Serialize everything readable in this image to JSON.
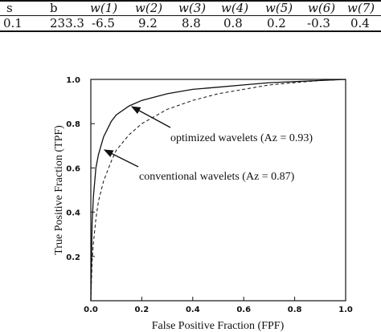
{
  "table": {
    "headers": [
      "s",
      "b",
      "w(1)",
      "w(2)",
      "w(3)",
      "w(4)",
      "w(5)",
      "w(6)",
      "w(7)"
    ],
    "values": [
      "0.1",
      "233.3",
      "-6.5",
      "9.2",
      "8.8",
      "0.8",
      "0.2",
      "-0.3",
      "0.4"
    ]
  },
  "chart_data": {
    "type": "line",
    "xlabel": "False Positive Fraction (FPF)",
    "ylabel": "True Positive Fraction (TPF)",
    "xlim": [
      0.0,
      1.0
    ],
    "ylim": [
      0.0,
      1.0
    ],
    "xticks": [
      "0.0",
      "0.2",
      "0.4",
      "0.6",
      "0.8",
      "1.0"
    ],
    "yticks": [
      "0.2",
      "0.4",
      "0.6",
      "0.8",
      "1.0"
    ],
    "grid": false,
    "series": [
      {
        "name": "optimized wavelets (Az = 0.93)",
        "style": "solid",
        "color": "#111111",
        "x": [
          0.0,
          0.005,
          0.01,
          0.02,
          0.03,
          0.05,
          0.08,
          0.1,
          0.15,
          0.2,
          0.3,
          0.4,
          0.5,
          0.6,
          0.7,
          0.8,
          0.9,
          1.0
        ],
        "y": [
          0.0,
          0.35,
          0.47,
          0.6,
          0.66,
          0.74,
          0.81,
          0.84,
          0.88,
          0.905,
          0.935,
          0.955,
          0.965,
          0.975,
          0.985,
          0.99,
          0.995,
          1.0
        ]
      },
      {
        "name": "conventional wavelets (Az = 0.87)",
        "style": "dashed",
        "color": "#111111",
        "x": [
          0.0,
          0.005,
          0.01,
          0.02,
          0.03,
          0.05,
          0.08,
          0.1,
          0.15,
          0.2,
          0.3,
          0.4,
          0.5,
          0.6,
          0.7,
          0.8,
          0.9,
          1.0
        ],
        "y": [
          0.0,
          0.18,
          0.26,
          0.37,
          0.45,
          0.54,
          0.63,
          0.68,
          0.75,
          0.8,
          0.865,
          0.905,
          0.935,
          0.955,
          0.975,
          0.985,
          0.995,
          1.0
        ]
      }
    ],
    "annotations": [
      {
        "text": "optimized wavelets (Az = 0.93)",
        "arrow_to": [
          0.16,
          0.88
        ]
      },
      {
        "text": "conventional wavelets (Az = 0.87)",
        "arrow_to": [
          0.08,
          0.61
        ]
      }
    ]
  }
}
